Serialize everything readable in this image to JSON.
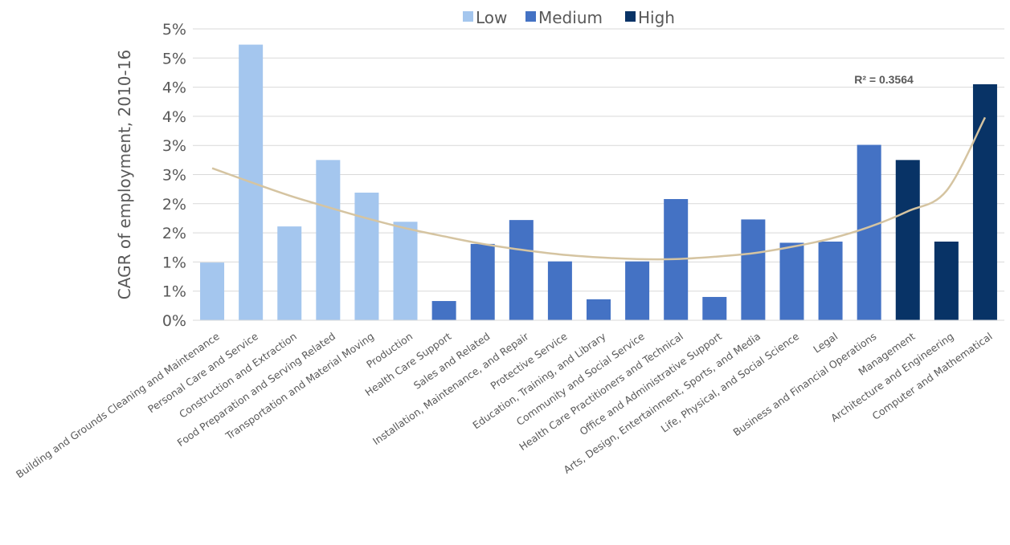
{
  "chart_data": {
    "type": "bar",
    "ylabel": "CAGR of employment, 2010-16",
    "ylim": [
      0,
      0.05
    ],
    "y_ticks": [
      {
        "value": 0.0,
        "label": "0%"
      },
      {
        "value": 0.005,
        "label": "1%"
      },
      {
        "value": 0.01,
        "label": "1%"
      },
      {
        "value": 0.015,
        "label": "2%"
      },
      {
        "value": 0.02,
        "label": "2%"
      },
      {
        "value": 0.025,
        "label": "3%"
      },
      {
        "value": 0.03,
        "label": "3%"
      },
      {
        "value": 0.035,
        "label": "4%"
      },
      {
        "value": 0.04,
        "label": "4%"
      },
      {
        "value": 0.045,
        "label": "5%"
      },
      {
        "value": 0.05,
        "label": "5%"
      }
    ],
    "grid": true,
    "legend": {
      "placement": "top-center",
      "items": [
        {
          "name": "Low",
          "color": "#A4C6EE"
        },
        {
          "name": "Medium",
          "color": "#4472C4"
        },
        {
          "name": "High",
          "color": "#083366"
        }
      ]
    },
    "categories": [
      {
        "label": "Building and Grounds Cleaning and Maintenance",
        "value": 0.0099,
        "group": "Low"
      },
      {
        "label": "Personal Care and Service",
        "value": 0.0473,
        "group": "Low"
      },
      {
        "label": "Construction and Extraction",
        "value": 0.0161,
        "group": "Low"
      },
      {
        "label": "Food Preparation and Serving Related",
        "value": 0.0275,
        "group": "Low"
      },
      {
        "label": "Transportation and Material Moving",
        "value": 0.0219,
        "group": "Low"
      },
      {
        "label": "Production",
        "value": 0.0169,
        "group": "Low"
      },
      {
        "label": "Health Care Support",
        "value": 0.0033,
        "group": "Medium"
      },
      {
        "label": "Sales and Related",
        "value": 0.0131,
        "group": "Medium"
      },
      {
        "label": "Installation, Maintenance, and Repair",
        "value": 0.0172,
        "group": "Medium"
      },
      {
        "label": "Protective Service",
        "value": 0.0101,
        "group": "Medium"
      },
      {
        "label": "Education, Training, and Library",
        "value": 0.0036,
        "group": "Medium"
      },
      {
        "label": "Community and Social Service",
        "value": 0.0101,
        "group": "Medium"
      },
      {
        "label": "Health Care Practitioners and Technical",
        "value": 0.0208,
        "group": "Medium"
      },
      {
        "label": "Office and Administrative Support",
        "value": 0.004,
        "group": "Medium"
      },
      {
        "label": "Arts, Design, Entertainment, Sports, and Media",
        "value": 0.0173,
        "group": "Medium"
      },
      {
        "label": "Life, Physical, and Social Science",
        "value": 0.0133,
        "group": "Medium"
      },
      {
        "label": "Legal",
        "value": 0.0135,
        "group": "Medium"
      },
      {
        "label": "Business and Financial Operations",
        "value": 0.0301,
        "group": "Medium"
      },
      {
        "label": "Management",
        "value": 0.0275,
        "group": "High"
      },
      {
        "label": "Architecture and Engineering",
        "value": 0.0135,
        "group": "High"
      },
      {
        "label": "Computer and Mathematical",
        "value": 0.0405,
        "group": "High"
      }
    ],
    "trendline": {
      "type": "polynomial",
      "color": "#D5C4A1",
      "r_squared_label": "R² = 0.3564",
      "values": [
        0.0261,
        0.0237,
        0.0214,
        0.0194,
        0.0175,
        0.0158,
        0.0144,
        0.0131,
        0.0121,
        0.0113,
        0.0108,
        0.0105,
        0.0105,
        0.0109,
        0.0115,
        0.0126,
        0.014,
        0.016,
        0.0187,
        0.0222,
        0.0348
      ]
    }
  }
}
